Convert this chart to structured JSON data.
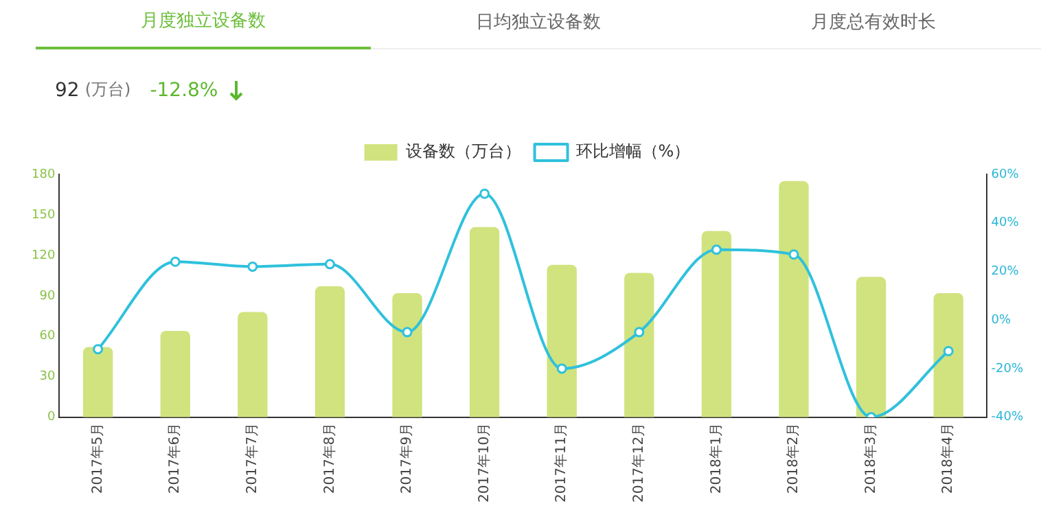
{
  "chart_data": {
    "type": "bar",
    "annotations": [
      "月度独立设备数",
      "日均独立设备数",
      "月度总有效时长",
      "92",
      "(万台)",
      "-12.8%"
    ],
    "categories": [
      "2017年5月",
      "2017年6月",
      "2017年7月",
      "2017年8月",
      "2017年9月",
      "2017年10月",
      "2017年11月",
      "2017年12月",
      "2018年1月",
      "2018年2月",
      "2018年3月",
      "2018年4月"
    ],
    "series": [
      {
        "name": "设备数（万台）",
        "color": "#d0e37f",
        "values": [
          52,
          64,
          78,
          97,
          92,
          141,
          113,
          107,
          138,
          175,
          104,
          92
        ]
      },
      {
        "name": "环比增幅（%）",
        "type": "line",
        "axis": "y2",
        "color": "#2fc1dc",
        "values": [
          -12,
          24,
          22,
          23,
          -5,
          52,
          -20,
          -5,
          29,
          27,
          -40,
          -12.8
        ]
      }
    ],
    "ylim": [
      0,
      180
    ],
    "yticks": [
      0,
      30,
      60,
      90,
      120,
      150,
      180
    ],
    "y2lim": [
      -40,
      60
    ],
    "y2ticks": [
      {
        "value": -40,
        "label": "-40%"
      },
      {
        "value": -20,
        "label": "-20%"
      },
      {
        "value": 0,
        "label": "0%"
      },
      {
        "value": 20,
        "label": "20%"
      },
      {
        "value": 40,
        "label": "40%"
      },
      {
        "value": 60,
        "label": "60%"
      }
    ],
    "grid": false,
    "legend": "top",
    "marker": "circle"
  }
}
